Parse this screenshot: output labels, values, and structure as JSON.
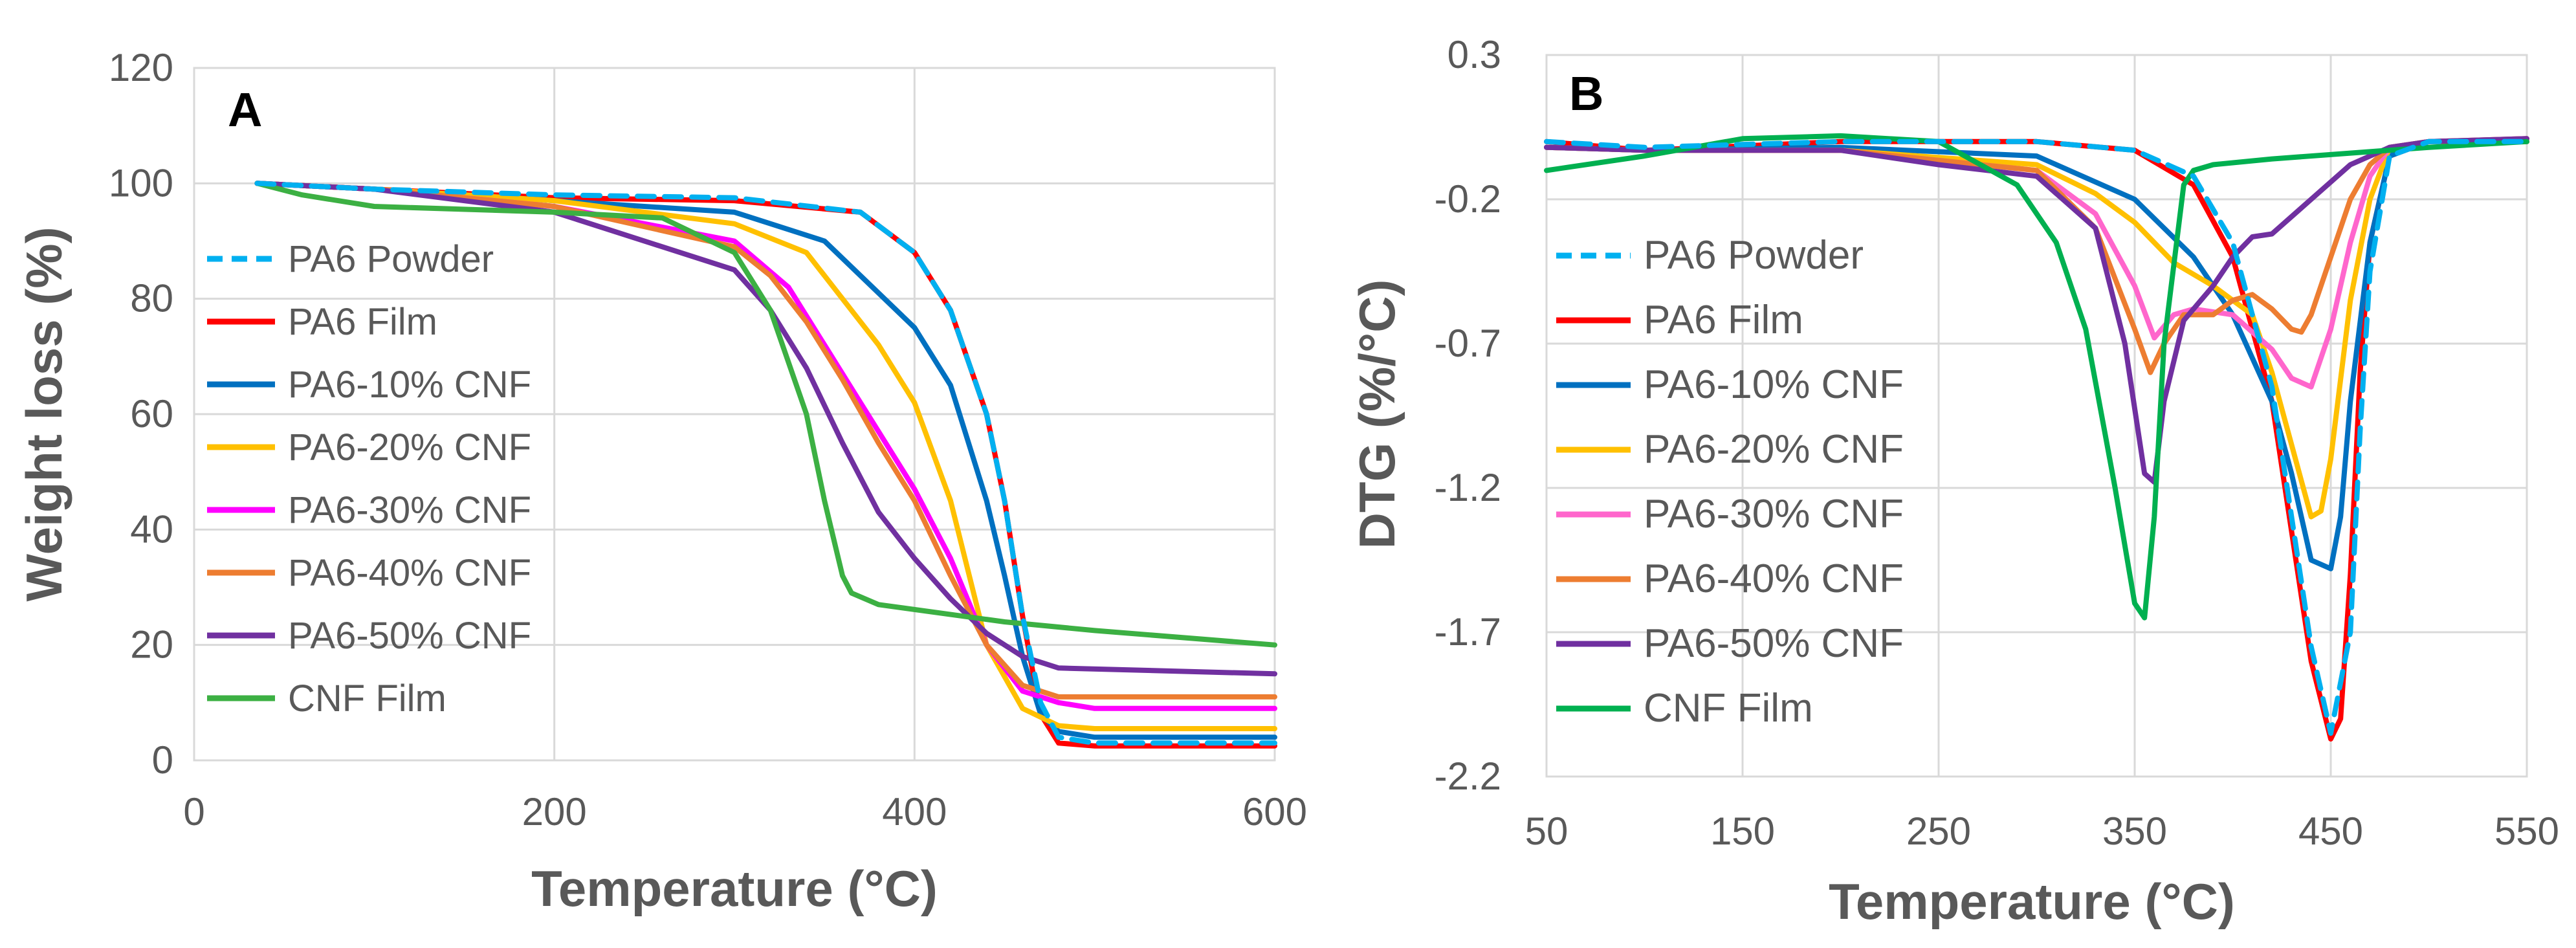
{
  "chart_data": [
    {
      "panel_label": "A",
      "type": "line",
      "xlabel": "Temperature (°C)",
      "ylabel": "Weight loss (%)",
      "xlim": [
        0,
        600
      ],
      "ylim": [
        0,
        120
      ],
      "xticks": [
        "0",
        "200",
        "400",
        "600"
      ],
      "yticks": [
        "0",
        "20",
        "40",
        "60",
        "80",
        "100",
        "120"
      ],
      "grid": true,
      "legend_position": "center-left",
      "series": [
        {
          "name": "PA6 Powder",
          "color": "#00b0f0",
          "dash": true,
          "x": [
            35,
            100,
            200,
            300,
            370,
            400,
            420,
            440,
            450,
            460,
            470,
            480,
            500,
            600
          ],
          "y": [
            100,
            99,
            98,
            97.5,
            95,
            88,
            78,
            60,
            45,
            25,
            10,
            4,
            3,
            3
          ]
        },
        {
          "name": "PA6 Film",
          "color": "#ff0000",
          "x": [
            35,
            100,
            200,
            300,
            370,
            400,
            420,
            440,
            450,
            460,
            470,
            480,
            500,
            600
          ],
          "y": [
            100,
            99,
            97.5,
            97,
            95,
            88,
            78,
            60,
            45,
            25,
            8,
            3,
            2.5,
            2.5
          ]
        },
        {
          "name": "PA6-10% CNF",
          "color": "#0070c0",
          "x": [
            35,
            100,
            200,
            300,
            350,
            400,
            420,
            440,
            450,
            460,
            470,
            480,
            500,
            600
          ],
          "y": [
            100,
            99,
            97,
            95,
            90,
            75,
            65,
            45,
            32,
            18,
            8,
            5,
            4,
            4
          ]
        },
        {
          "name": "PA6-20% CNF",
          "color": "#ffc000",
          "x": [
            35,
            100,
            200,
            300,
            340,
            360,
            380,
            400,
            420,
            440,
            460,
            480,
            500,
            600
          ],
          "y": [
            100,
            99,
            97,
            93,
            88,
            80,
            72,
            62,
            45,
            20,
            9,
            6,
            5.5,
            5.5
          ]
        },
        {
          "name": "PA6-30% CNF",
          "color": "#ff00ff",
          "x": [
            35,
            100,
            200,
            300,
            330,
            350,
            370,
            400,
            420,
            440,
            460,
            480,
            500,
            600
          ],
          "y": [
            100,
            99,
            96,
            90,
            82,
            72,
            62,
            47,
            35,
            20,
            12,
            10,
            9,
            9
          ]
        },
        {
          "name": "PA6-40% CNF",
          "color": "#ed7d31",
          "x": [
            35,
            100,
            200,
            300,
            320,
            340,
            360,
            380,
            400,
            420,
            440,
            460,
            480,
            600
          ],
          "y": [
            100,
            99,
            96,
            89,
            84,
            76,
            66,
            55,
            45,
            32,
            20,
            13,
            11,
            11
          ]
        },
        {
          "name": "PA6-50% CNF",
          "color": "#7030a0",
          "x": [
            35,
            100,
            200,
            300,
            320,
            340,
            360,
            380,
            400,
            420,
            440,
            460,
            480,
            600
          ],
          "y": [
            100,
            99,
            95,
            85,
            78,
            68,
            55,
            43,
            35,
            28,
            22,
            18,
            16,
            15
          ]
        },
        {
          "name": "CNF Film",
          "color": "#3cb043",
          "x": [
            35,
            60,
            100,
            200,
            260,
            300,
            320,
            340,
            350,
            360,
            365,
            380,
            450,
            500,
            600
          ],
          "y": [
            100,
            98,
            96,
            95,
            94,
            88,
            78,
            60,
            45,
            32,
            29,
            27,
            24,
            22.5,
            20
          ]
        }
      ]
    },
    {
      "panel_label": "B",
      "type": "line",
      "xlabel": "Temperature (°C)",
      "ylabel": "DTG (%/°C)",
      "xlim": [
        50,
        550
      ],
      "ylim": [
        -2.2,
        0.3
      ],
      "xticks": [
        "50",
        "150",
        "250",
        "350",
        "450",
        "550"
      ],
      "yticks": [
        "0.3",
        "-0.2",
        "-0.7",
        "-1.2",
        "-1.7",
        "-2.2"
      ],
      "grid": true,
      "legend_position": "center-left",
      "series": [
        {
          "name": "PA6 Powder",
          "color": "#00b0f0",
          "dash": true,
          "x": [
            50,
            100,
            200,
            300,
            350,
            380,
            400,
            420,
            430,
            440,
            450,
            460,
            465,
            470,
            480,
            500,
            550
          ],
          "y": [
            0,
            -0.02,
            0,
            0,
            -0.03,
            -0.12,
            -0.35,
            -0.85,
            -1.3,
            -1.75,
            -2.05,
            -1.7,
            -1.0,
            -0.45,
            -0.05,
            0,
            0
          ]
        },
        {
          "name": "PA6 Film",
          "color": "#ff0000",
          "x": [
            50,
            100,
            200,
            300,
            350,
            380,
            400,
            420,
            430,
            440,
            450,
            455,
            460,
            465,
            470,
            480,
            500,
            550
          ],
          "y": [
            0,
            -0.03,
            0,
            0,
            -0.03,
            -0.15,
            -0.4,
            -0.9,
            -1.35,
            -1.8,
            -2.07,
            -2.0,
            -1.5,
            -0.8,
            -0.35,
            -0.05,
            0,
            0.01
          ]
        },
        {
          "name": "PA6-10% CNF",
          "color": "#0070c0",
          "x": [
            50,
            100,
            200,
            300,
            350,
            380,
            400,
            420,
            430,
            440,
            450,
            455,
            460,
            470,
            480,
            500,
            550
          ],
          "y": [
            -0.02,
            -0.03,
            -0.02,
            -0.05,
            -0.2,
            -0.4,
            -0.6,
            -0.9,
            -1.15,
            -1.45,
            -1.48,
            -1.3,
            -0.9,
            -0.35,
            -0.05,
            0,
            0
          ]
        },
        {
          "name": "PA6-20% CNF",
          "color": "#ffc000",
          "x": [
            50,
            100,
            200,
            300,
            330,
            350,
            370,
            390,
            410,
            420,
            430,
            440,
            445,
            450,
            460,
            470,
            480,
            500,
            550
          ],
          "y": [
            -0.02,
            -0.03,
            -0.03,
            -0.08,
            -0.18,
            -0.28,
            -0.42,
            -0.5,
            -0.6,
            -0.8,
            -1.05,
            -1.3,
            -1.28,
            -1.1,
            -0.55,
            -0.2,
            -0.02,
            0,
            0
          ]
        },
        {
          "name": "PA6-30% CNF",
          "color": "#ff66cc",
          "x": [
            50,
            100,
            200,
            300,
            330,
            350,
            360,
            370,
            380,
            400,
            420,
            430,
            440,
            450,
            460,
            470,
            480,
            500,
            550
          ],
          "y": [
            -0.02,
            -0.03,
            -0.03,
            -0.1,
            -0.25,
            -0.5,
            -0.68,
            -0.6,
            -0.58,
            -0.6,
            -0.72,
            -0.82,
            -0.85,
            -0.65,
            -0.35,
            -0.12,
            -0.02,
            0,
            0
          ]
        },
        {
          "name": "PA6-40% CNF",
          "color": "#ed7d31",
          "x": [
            50,
            100,
            200,
            300,
            330,
            350,
            358,
            365,
            375,
            390,
            400,
            410,
            420,
            430,
            435,
            440,
            450,
            460,
            470,
            480,
            500,
            550
          ],
          "y": [
            -0.02,
            -0.03,
            -0.03,
            -0.1,
            -0.3,
            -0.65,
            -0.8,
            -0.7,
            -0.6,
            -0.6,
            -0.55,
            -0.53,
            -0.58,
            -0.65,
            -0.66,
            -0.6,
            -0.4,
            -0.2,
            -0.08,
            -0.02,
            0,
            0
          ]
        },
        {
          "name": "PA6-50% CNF",
          "color": "#7030a0",
          "x": [
            50,
            100,
            200,
            250,
            300,
            330,
            345,
            355,
            360,
            365,
            375,
            390,
            400,
            410,
            420,
            440,
            460,
            480,
            500,
            550
          ],
          "y": [
            -0.02,
            -0.03,
            -0.03,
            -0.08,
            -0.12,
            -0.3,
            -0.7,
            -1.15,
            -1.18,
            -0.9,
            -0.62,
            -0.5,
            -0.4,
            -0.33,
            -0.32,
            -0.2,
            -0.08,
            -0.02,
            0,
            0.01
          ]
        },
        {
          "name": "CNF Film",
          "color": "#00b050",
          "x": [
            50,
            100,
            150,
            200,
            250,
            290,
            310,
            325,
            340,
            350,
            355,
            360,
            365,
            375,
            380,
            390,
            420,
            460,
            500,
            550
          ],
          "y": [
            -0.1,
            -0.05,
            0.01,
            0.02,
            0,
            -0.15,
            -0.35,
            -0.65,
            -1.2,
            -1.6,
            -1.65,
            -1.3,
            -0.7,
            -0.15,
            -0.1,
            -0.08,
            -0.06,
            -0.04,
            -0.02,
            0
          ]
        }
      ]
    }
  ]
}
